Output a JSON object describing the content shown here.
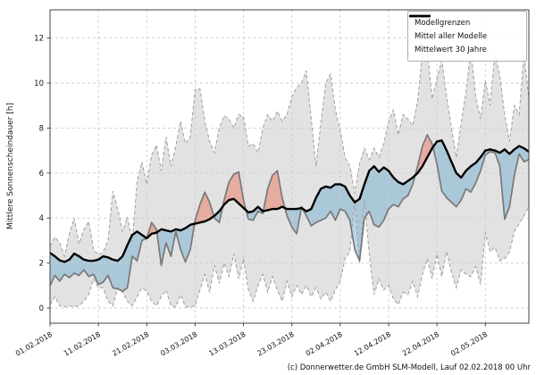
{
  "caption": "(c) Donnerwetter.de GmbH SLM-Modell, Lauf 02.02.2018 00 Uhr",
  "axes": {
    "ylabel": "Mittlere Sonnenscheindauer [h]",
    "yticks": [
      0,
      2,
      4,
      6,
      8,
      10,
      12
    ],
    "ylim": [
      -0.67,
      13.26
    ],
    "xlim_days": [
      0,
      99
    ],
    "grid": "dashed",
    "xticks": [
      {
        "day": 0,
        "label": "01.02.2018"
      },
      {
        "day": 10,
        "label": "11.02.2018"
      },
      {
        "day": 20,
        "label": "21.02.2018"
      },
      {
        "day": 30,
        "label": "03.03.2018"
      },
      {
        "day": 40,
        "label": "13.03.2018"
      },
      {
        "day": 50,
        "label": "23.03.2018"
      },
      {
        "day": 60,
        "label": "02.04.2018"
      },
      {
        "day": 70,
        "label": "12.04.2018"
      },
      {
        "day": 80,
        "label": "22.04.2018"
      },
      {
        "day": 90,
        "label": "02.05.2018"
      }
    ]
  },
  "legend": {
    "position": "upper right",
    "items": [
      {
        "label": "Modellgrenzen",
        "line": "dashed-gray"
      },
      {
        "label": "Mittel aller Modelle",
        "line": "solid-gray"
      },
      {
        "label": "Mittelwert 30 Jahre",
        "line": "thick-black"
      }
    ]
  },
  "colors": {
    "band": "#e2e2e2",
    "bounds_line": "#9e9e9e",
    "mean_line": "#787878",
    "mean30_line": "#000000",
    "above_fill": "rgba(233,128,105,0.55)",
    "below_fill": "rgba(125,178,210,0.55)",
    "grid": "#cdcdcd",
    "spine": "#404040",
    "tick_text": "#111111"
  },
  "chart_data": {
    "type": "line",
    "title": "",
    "xlabel": "",
    "ylabel": "Mittlere Sonnenscheindauer [h]",
    "x_start_date": "01.02.2018",
    "x_step_days": 1,
    "n_points": 100,
    "legend_position": "upper right",
    "series": [
      {
        "name": "Modellgrenzen (untere Grenze)",
        "style": "dashed",
        "values": [
          0.15,
          0.5,
          0.1,
          0.05,
          0.1,
          0.05,
          0.1,
          0.3,
          0.6,
          1.3,
          0.9,
          0.9,
          0.3,
          0.1,
          0.9,
          0.7,
          0.3,
          0.1,
          0.5,
          0.9,
          0.75,
          0.3,
          0.1,
          0.5,
          0.8,
          0.1,
          0.05,
          0.6,
          0.05,
          0.05,
          0.1,
          0.8,
          1.5,
          0.7,
          1.9,
          1.1,
          2.0,
          1.4,
          2.4,
          1.3,
          2.2,
          0.8,
          0.3,
          1.0,
          1.5,
          0.7,
          1.4,
          0.8,
          0.3,
          1.2,
          0.5,
          1.0,
          0.6,
          1.0,
          0.5,
          0.9,
          0.4,
          0.7,
          0.3,
          0.8,
          1.2,
          2.2,
          2.5,
          4.8,
          2.0,
          4.8,
          2.4,
          0.6,
          1.3,
          0.8,
          1.0,
          0.4,
          0.15,
          0.7,
          0.6,
          1.2,
          0.5,
          1.5,
          2.2,
          1.3,
          2.4,
          1.4,
          2.5,
          1.6,
          0.9,
          1.7,
          1.5,
          1.4,
          1.85,
          1.05,
          3.35,
          2.5,
          2.7,
          2.1,
          2.2,
          2.5,
          3.4,
          3.75,
          4.1,
          4.55
        ]
      },
      {
        "name": "Modellgrenzen (obere Grenze)",
        "style": "dashed",
        "values": [
          2.75,
          3.15,
          2.9,
          2.3,
          3.3,
          4.0,
          2.85,
          3.5,
          3.85,
          2.6,
          2.35,
          2.5,
          3.0,
          5.2,
          4.4,
          3.4,
          4.05,
          2.95,
          5.6,
          6.5,
          5.5,
          6.8,
          7.25,
          6.1,
          7.6,
          6.3,
          7.2,
          8.3,
          7.3,
          7.6,
          9.7,
          9.75,
          8.3,
          7.4,
          6.9,
          8.0,
          8.55,
          8.4,
          8.0,
          8.6,
          8.5,
          7.2,
          7.3,
          6.9,
          8.0,
          8.6,
          8.3,
          8.75,
          8.3,
          8.6,
          9.4,
          9.8,
          10.0,
          10.55,
          8.4,
          6.3,
          8.2,
          10.0,
          10.4,
          8.8,
          7.9,
          6.7,
          6.3,
          5.1,
          6.4,
          7.1,
          6.6,
          7.1,
          6.7,
          7.3,
          8.3,
          8.8,
          7.7,
          8.6,
          8.4,
          8.1,
          9.2,
          11.3,
          11.5,
          9.3,
          10.2,
          11.0,
          9.4,
          8.0,
          6.7,
          8.2,
          9.6,
          11.5,
          9.4,
          8.4,
          10.1,
          9.0,
          11.3,
          10.3,
          8.6,
          7.4,
          9.0,
          8.6,
          11.3,
          9.3
        ]
      },
      {
        "name": "Mittel aller Modelle",
        "style": "solid-gray",
        "values": [
          1.0,
          1.45,
          1.2,
          1.5,
          1.35,
          1.55,
          1.45,
          1.7,
          1.4,
          1.5,
          1.05,
          1.15,
          1.45,
          0.9,
          0.85,
          0.75,
          0.9,
          2.3,
          2.1,
          3.0,
          3.1,
          3.8,
          3.5,
          1.9,
          2.9,
          2.3,
          3.4,
          2.6,
          2.05,
          2.6,
          3.9,
          4.6,
          5.15,
          4.7,
          4.0,
          3.8,
          4.8,
          5.6,
          5.95,
          6.05,
          4.8,
          3.95,
          3.9,
          4.3,
          4.2,
          5.3,
          5.9,
          6.1,
          4.9,
          4.1,
          3.6,
          3.3,
          4.5,
          4.1,
          3.65,
          3.8,
          3.9,
          4.0,
          4.3,
          3.9,
          4.4,
          4.3,
          3.9,
          2.6,
          2.1,
          4.0,
          4.3,
          3.7,
          3.6,
          3.9,
          4.4,
          4.6,
          4.5,
          4.85,
          5.0,
          5.5,
          6.3,
          7.2,
          7.7,
          7.3,
          6.4,
          5.2,
          4.9,
          4.7,
          4.5,
          4.8,
          5.3,
          5.15,
          5.55,
          6.1,
          6.8,
          6.95,
          6.9,
          6.3,
          3.95,
          4.5,
          5.9,
          6.85,
          6.5,
          6.6
        ]
      },
      {
        "name": "Mittelwert 30 Jahre",
        "style": "thick-black",
        "values": [
          2.45,
          2.3,
          2.12,
          2.05,
          2.15,
          2.42,
          2.3,
          2.15,
          2.1,
          2.1,
          2.15,
          2.3,
          2.25,
          2.15,
          2.1,
          2.3,
          2.8,
          3.25,
          3.4,
          3.25,
          3.1,
          3.3,
          3.35,
          3.5,
          3.45,
          3.4,
          3.5,
          3.45,
          3.55,
          3.7,
          3.75,
          3.8,
          3.85,
          3.95,
          4.1,
          4.3,
          4.6,
          4.8,
          4.85,
          4.65,
          4.45,
          4.25,
          4.3,
          4.5,
          4.3,
          4.35,
          4.4,
          4.4,
          4.5,
          4.4,
          4.4,
          4.4,
          4.45,
          4.3,
          4.4,
          4.9,
          5.3,
          5.4,
          5.35,
          5.5,
          5.5,
          5.4,
          5.0,
          4.7,
          4.85,
          5.5,
          6.1,
          6.3,
          6.05,
          6.25,
          6.1,
          5.8,
          5.6,
          5.5,
          5.65,
          5.8,
          6.0,
          6.3,
          6.7,
          7.1,
          7.4,
          7.45,
          7.0,
          6.5,
          6.0,
          5.8,
          6.1,
          6.3,
          6.45,
          6.7,
          7.0,
          7.05,
          7.0,
          6.9,
          7.05,
          6.85,
          7.05,
          7.2,
          7.1,
          6.95
        ]
      }
    ],
    "fills": [
      {
        "name": "Modellspanne",
        "between": [
          "Modellgrenzen (untere Grenze)",
          "Modellgrenzen (obere Grenze)"
        ],
        "color_key": "band"
      },
      {
        "name": "Modellmittel unter 30-Jahre-Mittel",
        "between": [
          "Mittel aller Modelle",
          "Mittelwert 30 Jahre"
        ],
        "when": "mean < mean30",
        "color_key": "below_fill"
      },
      {
        "name": "Modellmittel ueber 30-Jahre-Mittel",
        "between": [
          "Mittel aller Modelle",
          "Mittelwert 30 Jahre"
        ],
        "when": "mean > mean30",
        "color_key": "above_fill"
      }
    ]
  }
}
